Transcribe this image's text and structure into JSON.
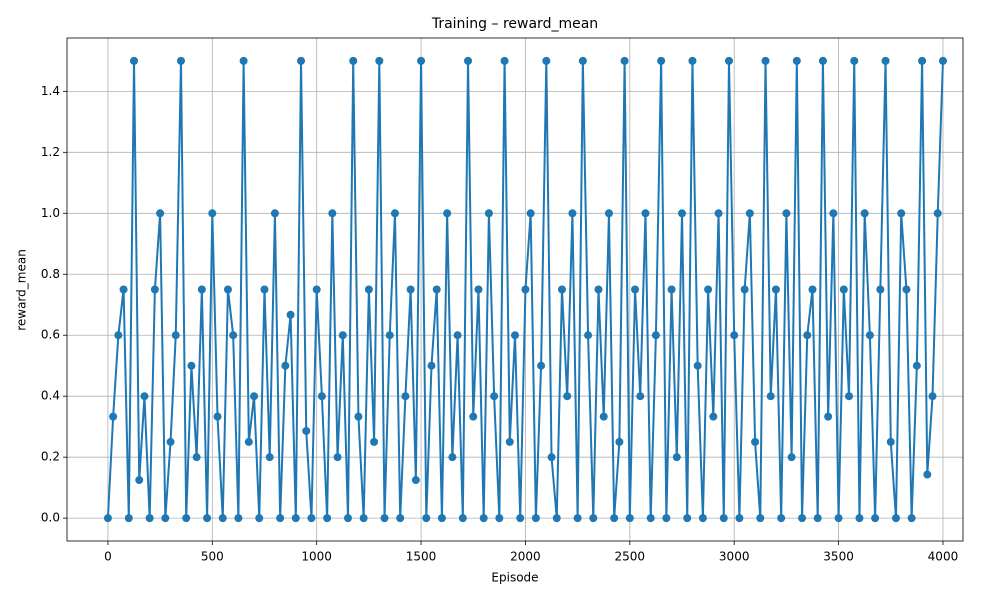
{
  "chart_data": {
    "type": "line",
    "title": "Training – reward_mean",
    "xlabel": "Episode",
    "ylabel": "reward_mean",
    "color": "#1f77b4",
    "grid": true,
    "markers": true,
    "xlim": [
      -196,
      4096
    ],
    "ylim": [
      -0.075,
      1.575
    ],
    "xticks": [
      0,
      500,
      1000,
      1500,
      2000,
      2500,
      3000,
      3500,
      4000
    ],
    "yticks": [
      {
        "value": 0,
        "label": "0.0"
      },
      0.2,
      0.4,
      0.6,
      0.8,
      {
        "value": 1,
        "label": "1.0"
      },
      1.2,
      1.4
    ],
    "x": [
      0,
      25,
      50,
      75,
      100,
      125,
      150,
      175,
      200,
      225,
      250,
      275,
      300,
      325,
      350,
      375,
      400,
      425,
      450,
      475,
      500,
      525,
      550,
      575,
      600,
      625,
      650,
      675,
      700,
      725,
      750,
      775,
      800,
      825,
      850,
      875,
      900,
      925,
      950,
      975,
      1000,
      1025,
      1050,
      1075,
      1100,
      1125,
      1150,
      1175,
      1200,
      1225,
      1250,
      1275,
      1300,
      1325,
      1350,
      1375,
      1400,
      1425,
      1450,
      1475,
      1500,
      1525,
      1550,
      1575,
      1600,
      1625,
      1650,
      1675,
      1700,
      1725,
      1750,
      1775,
      1800,
      1825,
      1850,
      1875,
      1900,
      1925,
      1950,
      1975,
      2000,
      2025,
      2050,
      2075,
      2100,
      2125,
      2150,
      2175,
      2200,
      2225,
      2250,
      2275,
      2300,
      2325,
      2350,
      2375,
      2400,
      2425,
      2450,
      2475,
      2500,
      2525,
      2550,
      2575,
      2600,
      2625,
      2650,
      2675,
      2700,
      2725,
      2750,
      2775,
      2800,
      2825,
      2850,
      2875,
      2900,
      2925,
      2950,
      2975,
      3000,
      3025,
      3050,
      3075,
      3100,
      3125,
      3150,
      3175,
      3200,
      3225,
      3250,
      3275,
      3300,
      3325,
      3350,
      3375,
      3400,
      3425,
      3450,
      3475,
      3500,
      3525,
      3550,
      3575,
      3600,
      3625,
      3650,
      3675,
      3700,
      3725,
      3750,
      3775,
      3800,
      3825,
      3850,
      3875,
      3900,
      3925,
      3950,
      3975,
      4000
    ],
    "values": [
      0,
      0.333,
      0.6,
      0.75,
      0,
      1.5,
      0.125,
      0.4,
      0,
      0.75,
      1.0,
      0,
      0.25,
      0.6,
      1.5,
      0,
      0.5,
      0.2,
      0.75,
      0,
      1.0,
      0.333,
      0,
      0.75,
      0.6,
      0,
      1.5,
      0.25,
      0.4,
      0,
      0.75,
      0.2,
      1.0,
      0,
      0.5,
      0.667,
      0,
      1.5,
      0.286,
      0,
      0.75,
      0.4,
      0,
      1.0,
      0.2,
      0.6,
      0,
      1.5,
      0.333,
      0,
      0.75,
      0.25,
      1.5,
      0,
      0.6,
      1.0,
      0,
      0.4,
      0.75,
      0.125,
      1.5,
      0,
      0.5,
      0.75,
      0,
      1.0,
      0.2,
      0.6,
      0,
      1.5,
      0.333,
      0.75,
      0,
      1.0,
      0.4,
      0,
      1.5,
      0.25,
      0.6,
      0,
      0.75,
      1.0,
      0,
      0.5,
      1.5,
      0.2,
      0,
      0.75,
      0.4,
      1.0,
      0,
      1.5,
      0.6,
      0,
      0.75,
      0.333,
      1.0,
      0,
      0.25,
      1.5,
      0,
      0.75,
      0.4,
      1.0,
      0,
      0.6,
      1.5,
      0,
      0.75,
      0.2,
      1.0,
      0,
      1.5,
      0.5,
      0,
      0.75,
      0.333,
      1.0,
      0,
      1.5,
      0.6,
      0,
      0.75,
      1.0,
      0.25,
      0,
      1.5,
      0.4,
      0.75,
      0,
      1.0,
      0.2,
      1.5,
      0,
      0.6,
      0.75,
      0,
      1.5,
      0.333,
      1.0,
      0,
      0.75,
      0.4,
      1.5,
      0,
      1.0,
      0.6,
      0,
      0.75,
      1.5,
      0.25,
      0,
      1.0,
      0.75,
      0,
      0.5,
      1.5,
      0.143,
      0.4,
      1.0,
      1.5
    ]
  }
}
